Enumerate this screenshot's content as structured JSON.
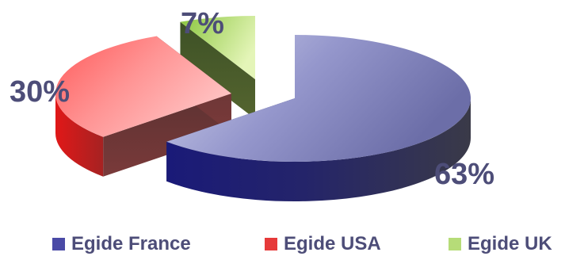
{
  "chart_data": {
    "type": "pie",
    "style": "3d-exploded",
    "legend_position": "bottom",
    "slices": [
      {
        "label": "Egide France",
        "value": 63,
        "value_label": "63%",
        "color": "#3f3f9a"
      },
      {
        "label": "Egide USA",
        "value": 30,
        "value_label": "30%",
        "color": "#e63a3a"
      },
      {
        "label": "Egide UK",
        "value": 7,
        "value_label": "7%",
        "color": "#a8d36a"
      }
    ]
  }
}
